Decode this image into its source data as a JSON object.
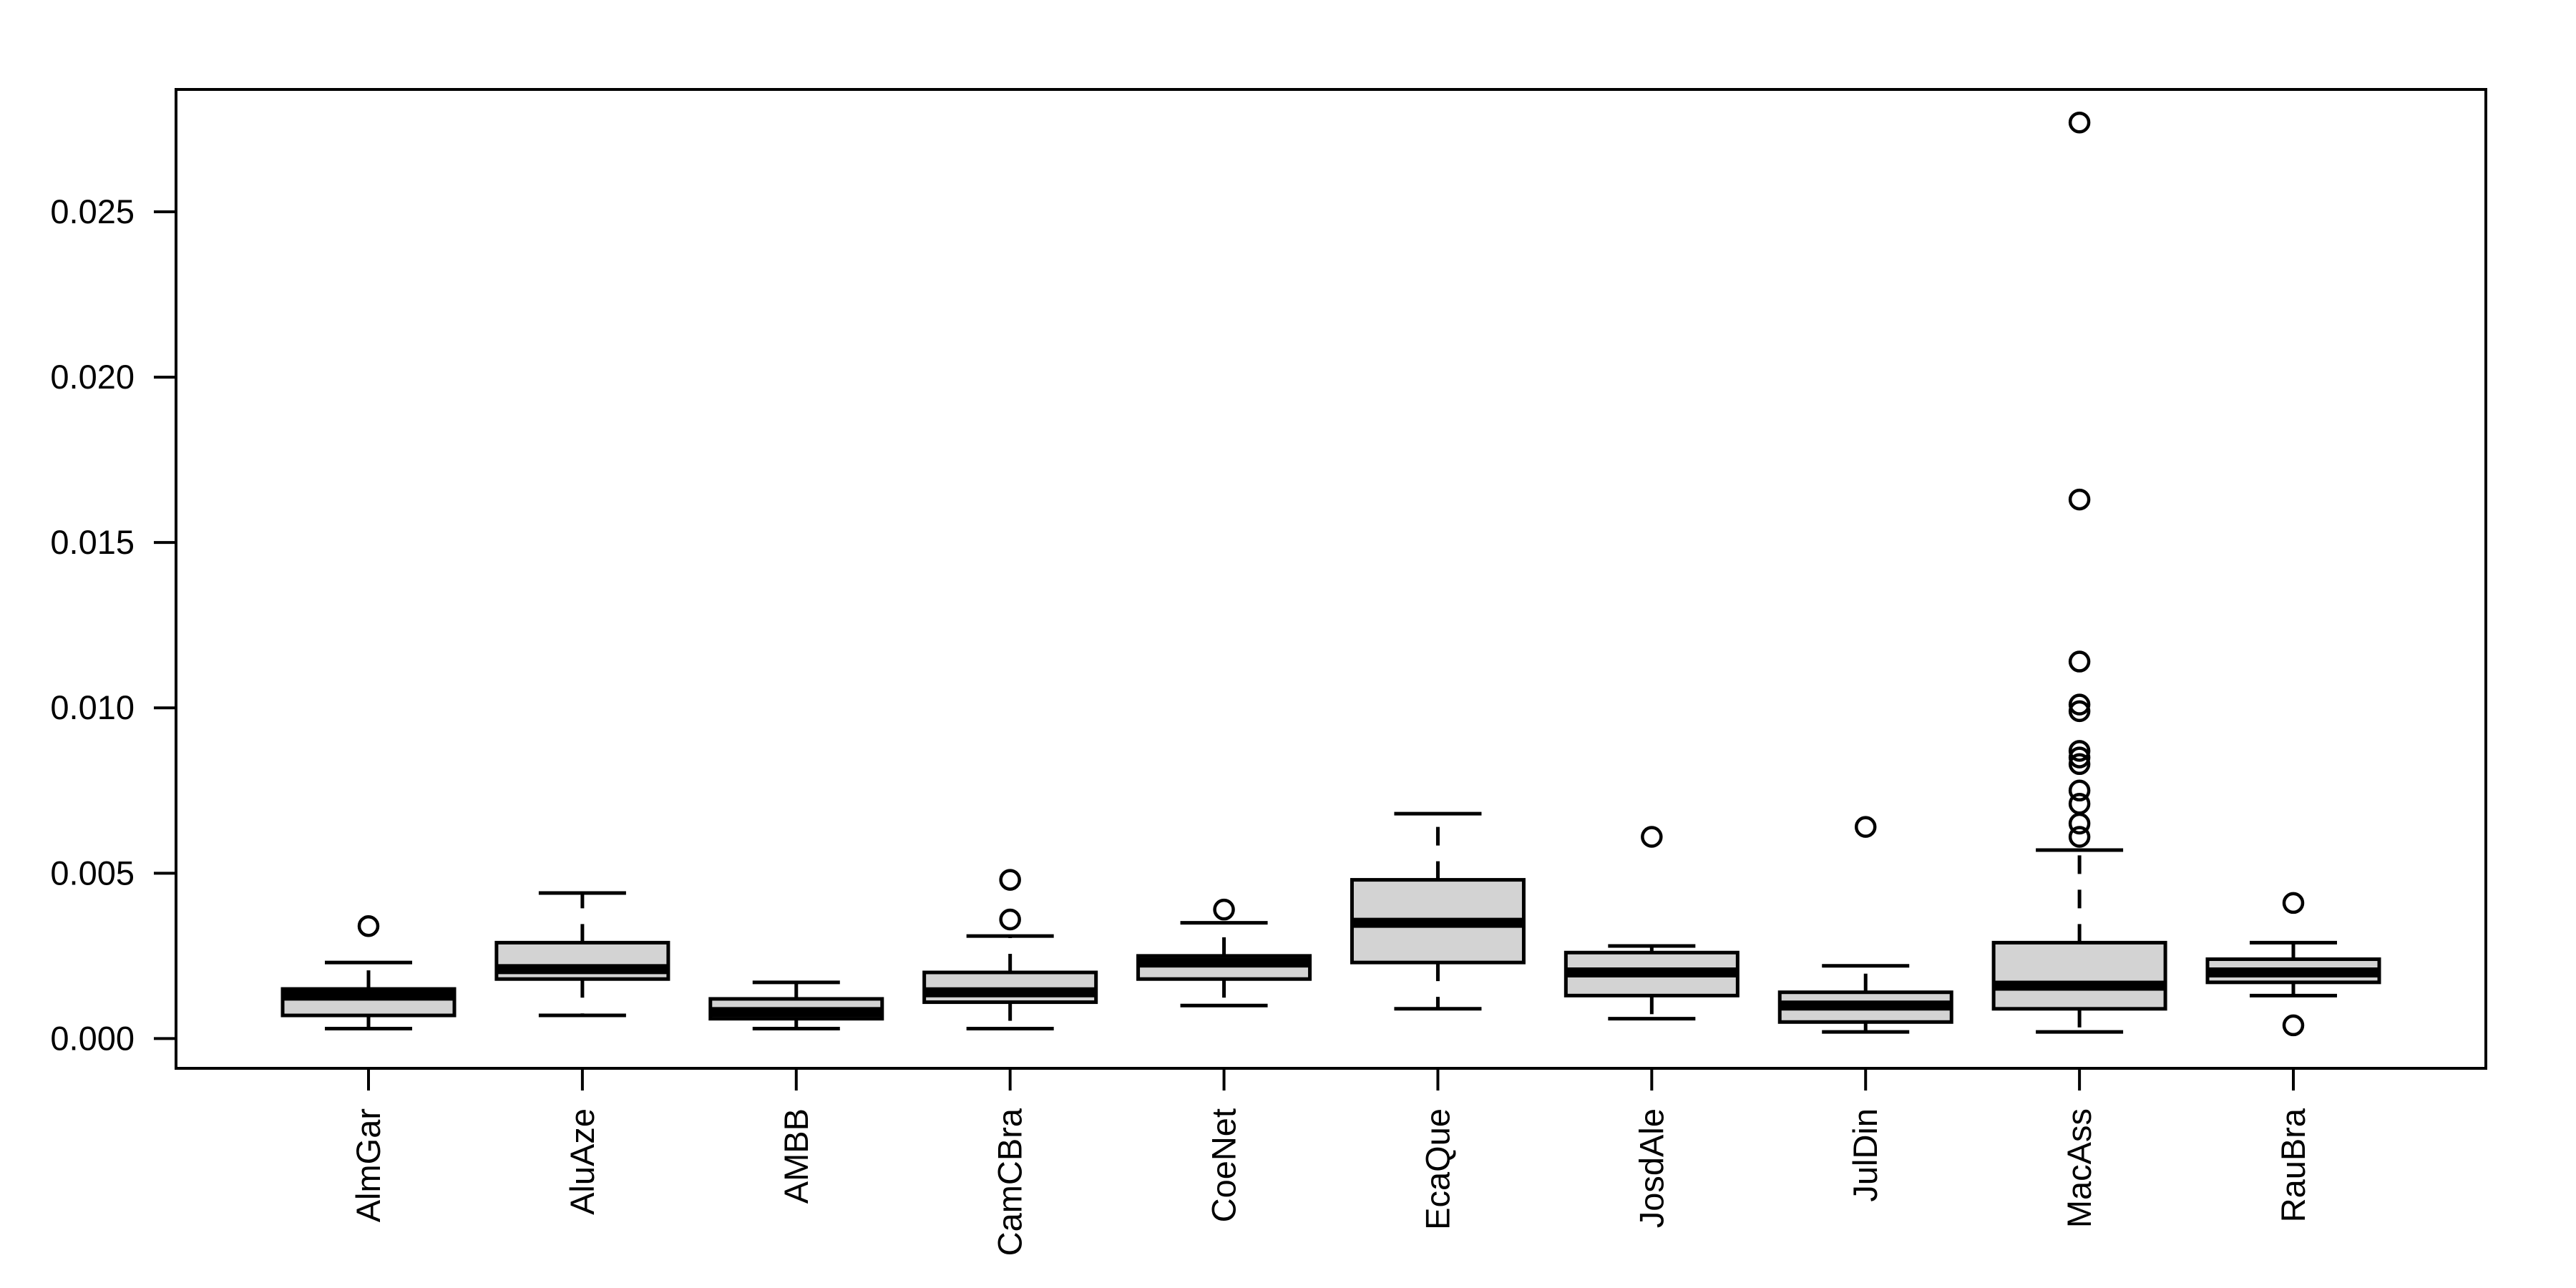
{
  "figure": {
    "kind": "R-style box-and-whisker plot",
    "background": "#ffffff"
  },
  "chart_data": {
    "type": "boxplot",
    "title": "",
    "xlabel": "",
    "ylabel": "",
    "grid": false,
    "legend": false,
    "categories": [
      "AlmGar",
      "AluAze",
      "AMBB",
      "CamCBra",
      "CoeNet",
      "EcaQue",
      "JosdAle",
      "JulDin",
      "MacAss",
      "RauBra"
    ],
    "y_ticks": [
      0.0,
      0.005,
      0.01,
      0.015,
      0.02,
      0.025
    ],
    "y_tick_labels": [
      "0.000",
      "0.005",
      "0.010",
      "0.015",
      "0.020",
      "0.025"
    ],
    "ylim": [
      -0.0009,
      0.0287
    ],
    "box_fill": "#d3d3d3",
    "line_color": "#000000",
    "series": [
      {
        "label": "AlmGar",
        "whisker_low": 0.0003,
        "q1": 0.0007,
        "median": 0.0013,
        "q3": 0.0015,
        "whisker_high": 0.0023,
        "outliers": [
          0.0034
        ]
      },
      {
        "label": "AluAze",
        "whisker_low": 0.0007,
        "q1": 0.0018,
        "median": 0.0021,
        "q3": 0.0029,
        "whisker_high": 0.0044,
        "outliers": []
      },
      {
        "label": "AMBB",
        "whisker_low": 0.0003,
        "q1": 0.0006,
        "median": 0.0008,
        "q3": 0.0012,
        "whisker_high": 0.0017,
        "outliers": []
      },
      {
        "label": "CamCBra",
        "whisker_low": 0.0003,
        "q1": 0.0011,
        "median": 0.0014,
        "q3": 0.002,
        "whisker_high": 0.0031,
        "outliers": [
          0.0036,
          0.0048
        ]
      },
      {
        "label": "CoeNet",
        "whisker_low": 0.001,
        "q1": 0.0018,
        "median": 0.0023,
        "q3": 0.0025,
        "whisker_high": 0.0035,
        "outliers": [
          0.0039
        ]
      },
      {
        "label": "EcaQue",
        "whisker_low": 0.0009,
        "q1": 0.0023,
        "median": 0.0035,
        "q3": 0.0048,
        "whisker_high": 0.0068,
        "outliers": []
      },
      {
        "label": "JosdAle",
        "whisker_low": 0.0006,
        "q1": 0.0013,
        "median": 0.002,
        "q3": 0.0026,
        "whisker_high": 0.0028,
        "outliers": [
          0.0061
        ]
      },
      {
        "label": "JulDin",
        "whisker_low": 0.0002,
        "q1": 0.0005,
        "median": 0.001,
        "q3": 0.0014,
        "whisker_high": 0.0022,
        "outliers": [
          0.0064
        ]
      },
      {
        "label": "MacAss",
        "whisker_low": 0.0002,
        "q1": 0.0009,
        "median": 0.0016,
        "q3": 0.0029,
        "whisker_high": 0.0057,
        "outliers": [
          0.0061,
          0.0065,
          0.0071,
          0.0075,
          0.0083,
          0.0085,
          0.0087,
          0.0099,
          0.0101,
          0.0114,
          0.0163,
          0.0277
        ]
      },
      {
        "label": "RauBra",
        "whisker_low": 0.0013,
        "q1": 0.0017,
        "median": 0.002,
        "q3": 0.0024,
        "whisker_high": 0.0029,
        "outliers": [
          0.0041,
          0.0004
        ]
      }
    ]
  }
}
